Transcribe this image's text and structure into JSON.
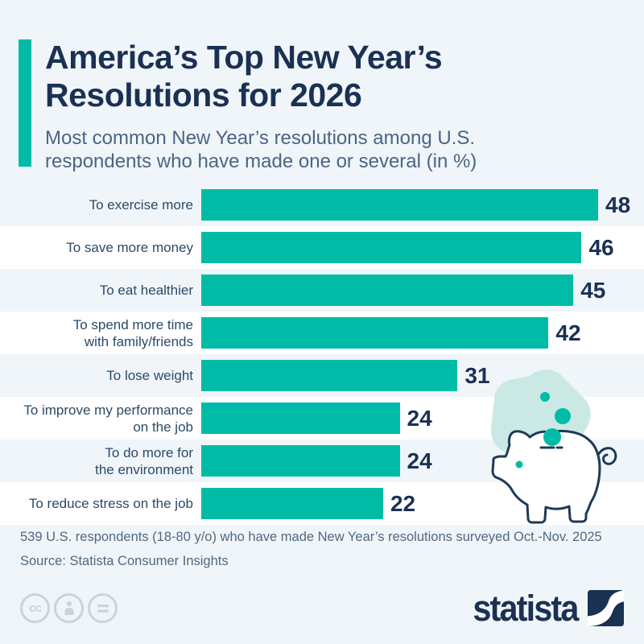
{
  "page": {
    "background": "#f0f5f9"
  },
  "header": {
    "accent_color": "#00bca6",
    "title": "America’s Top New Year’s\nResolutions for 2026",
    "subtitle": "Most common New Year’s resolutions among U.S.\nrespondents who have made one or several (in %)",
    "title_color": "#1b3153",
    "subtitle_color": "#4a6583"
  },
  "chart_data": {
    "type": "bar",
    "orientation": "horizontal",
    "title": "America’s Top New Year’s Resolutions for 2026",
    "subtitle": "Most common New Year’s resolutions among U.S. respondents who have made one or several (in %)",
    "unit": "%",
    "xlim": [
      0,
      48
    ],
    "grid": false,
    "categories": [
      "To exercise more",
      "To save more money",
      "To eat healthier",
      "To spend more time\nwith family/friends",
      "To lose weight",
      "To improve my performance\non the job",
      "To do more for\nthe environment",
      "To reduce stress on the job"
    ],
    "values": [
      48,
      46,
      45,
      42,
      31,
      24,
      24,
      22
    ],
    "bar_color": "#00bca6",
    "stripe_color": "#ffffff",
    "label_color": "#2b4a66",
    "value_label_color": "#1b3153"
  },
  "illustration": {
    "name": "piggy-bank-with-falling-coins",
    "blob_color": "#cbe9e4",
    "coin_color": "#00bca6",
    "outline_color": "#1e3a55"
  },
  "footer": {
    "note": "539 U.S. respondents (18-80 y/o) who have made New Year’s resolutions surveyed Oct.-Nov. 2025",
    "source": "Source: Statista Consumer Insights",
    "text_color": "#51697f",
    "license": {
      "icons": [
        "cc-icon",
        "attribution-icon",
        "equals-icon"
      ],
      "cc_label": "cc",
      "color": "#c8d4de"
    },
    "brand": {
      "name": "statista",
      "color": "#1b3153"
    }
  }
}
